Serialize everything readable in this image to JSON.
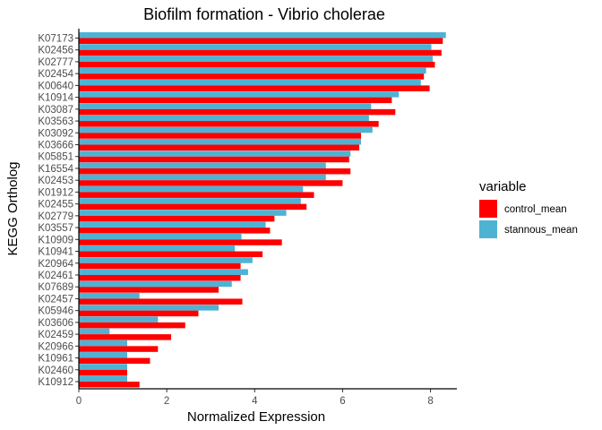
{
  "chart_data": {
    "type": "bar",
    "orientation": "horizontal",
    "title": "Biofilm formation - Vibrio cholerae",
    "xlabel": "Normalized Expression",
    "ylabel": "KEGG Ortholog",
    "xlim": [
      0,
      8.6
    ],
    "xticks": [
      0,
      2,
      4,
      6,
      8
    ],
    "grid": false,
    "legend_title": "variable",
    "legend_position": "right",
    "categories": [
      "K07173",
      "K02456",
      "K02777",
      "K02454",
      "K00640",
      "K10914",
      "K03087",
      "K03563",
      "K03092",
      "K03666",
      "K05851",
      "K16554",
      "K02453",
      "K01912",
      "K02455",
      "K02779",
      "K03557",
      "K10909",
      "K10941",
      "K20964",
      "K02461",
      "K07689",
      "K02457",
      "K05946",
      "K03606",
      "K02459",
      "K20966",
      "K10961",
      "K02460",
      "K10912"
    ],
    "series": [
      {
        "name": "control_mean",
        "color": "#ff0000",
        "values": [
          8.28,
          8.25,
          8.1,
          7.85,
          7.98,
          7.12,
          7.2,
          6.82,
          6.42,
          6.38,
          6.15,
          6.18,
          6.0,
          5.35,
          5.18,
          4.45,
          4.35,
          4.62,
          4.18,
          3.68,
          3.68,
          3.18,
          3.72,
          2.72,
          2.42,
          2.1,
          1.8,
          1.62,
          1.1,
          1.38
        ]
      },
      {
        "name": "stannous_mean",
        "color": "#4eb3d3",
        "values": [
          8.35,
          8.02,
          8.05,
          7.9,
          7.78,
          7.28,
          6.65,
          6.6,
          6.68,
          6.42,
          6.18,
          5.62,
          5.62,
          5.1,
          5.05,
          4.72,
          4.25,
          3.7,
          3.55,
          3.95,
          3.85,
          3.48,
          1.38,
          3.18,
          1.8,
          0.7,
          1.1,
          1.1,
          1.1,
          1.1
        ]
      }
    ]
  }
}
